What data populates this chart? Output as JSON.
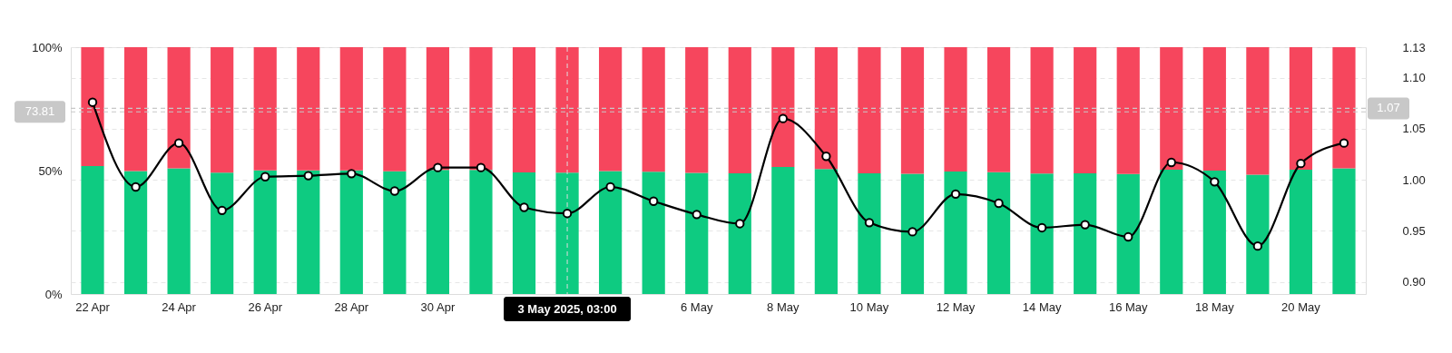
{
  "chart_data": {
    "type": "bar",
    "stacked": true,
    "categories": [
      "22 Apr",
      null,
      "24 Apr",
      null,
      "26 Apr",
      null,
      "28 Apr",
      null,
      "30 Apr",
      null,
      null,
      null,
      null,
      null,
      "6 May",
      null,
      "8 May",
      null,
      "10 May",
      null,
      "12 May",
      null,
      "14 May",
      null,
      "16 May",
      null,
      "18 May",
      null,
      "20 May",
      null
    ],
    "series": [
      {
        "color": "#0ecb81",
        "values": [
          51.8,
          49.8,
          50.9,
          49.2,
          50.1,
          50.1,
          50.1,
          49.7,
          50.3,
          50.3,
          49.3,
          49.2,
          49.8,
          49.5,
          49.1,
          48.9,
          51.5,
          50.6,
          48.9,
          48.7,
          49.6,
          49.4,
          48.8,
          48.9,
          48.6,
          50.4,
          50.0,
          48.3,
          50.4,
          50.9
        ]
      },
      {
        "color": "#f6465d",
        "values": [
          48.2,
          50.2,
          49.1,
          50.8,
          49.9,
          49.9,
          49.9,
          50.3,
          49.7,
          49.7,
          50.7,
          50.8,
          50.2,
          50.5,
          50.9,
          51.1,
          48.5,
          49.4,
          51.1,
          51.3,
          50.4,
          50.6,
          51.2,
          51.1,
          51.4,
          49.6,
          50.0,
          51.7,
          49.6,
          49.1
        ]
      },
      {
        "type": "line",
        "axis": "y2",
        "color": "#000000",
        "values": [
          1.076,
          0.993,
          1.036,
          0.97,
          1.003,
          1.004,
          1.006,
          0.989,
          1.012,
          1.012,
          0.973,
          0.967,
          0.993,
          0.979,
          0.966,
          0.957,
          1.06,
          1.023,
          0.958,
          0.949,
          0.986,
          0.977,
          0.953,
          0.956,
          0.944,
          1.017,
          0.998,
          0.935,
          1.016,
          1.036
        ]
      }
    ],
    "ylim": [
      0,
      100
    ],
    "yticks": [
      {
        "value": 0,
        "label": "0%"
      },
      {
        "value": 50,
        "label": "50%"
      },
      {
        "value": 100,
        "label": "100%"
      }
    ],
    "y2lim": [
      0.888,
      1.13
    ],
    "y2ticks": [
      {
        "value": 0.9,
        "label": "0.90"
      },
      0.95,
      {
        "value": 1.0,
        "label": "1.00"
      },
      1.05,
      {
        "value": 1.1,
        "label": "1.10"
      },
      1.13
    ],
    "ref_lines": [
      {
        "axis": "y",
        "value": 73.81,
        "label": "73.81",
        "line_style": "dashed"
      },
      {
        "axis": "y2",
        "value": 1.07,
        "label": "1.07",
        "line_style": "dashed"
      }
    ],
    "annotations": [
      "3 May 2025, 03:00"
    ],
    "grid": true,
    "marker": "circle",
    "line_style": "solid"
  }
}
